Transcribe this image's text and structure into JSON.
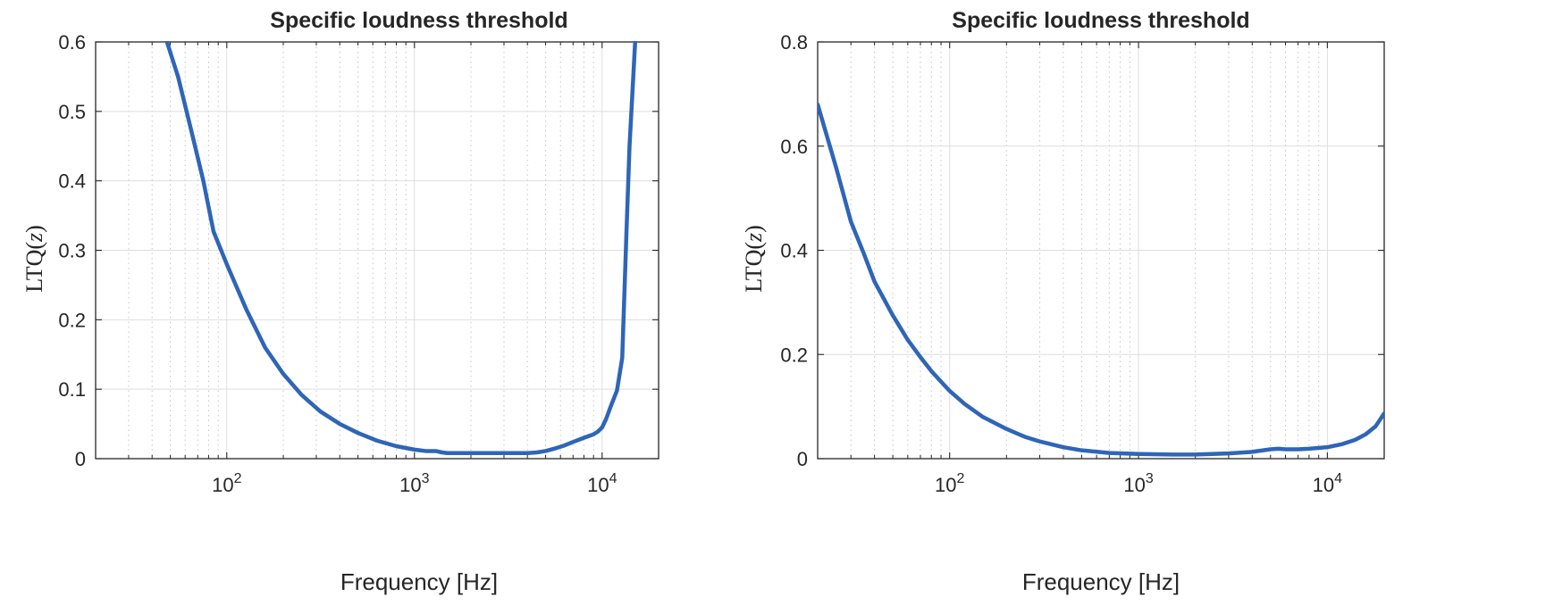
{
  "chart_data": [
    {
      "type": "line",
      "title": "Specific loudness threshold",
      "xlabel": "Frequency [Hz]",
      "ylabel": "LTQ(z)",
      "ylabel_parts": {
        "prefix": "LTQ(",
        "var": "z",
        "suffix": ")"
      },
      "xscale": "log",
      "xlim": [
        20,
        20000
      ],
      "ylim": [
        0,
        0.6
      ],
      "yticks": [
        0,
        0.1,
        0.2,
        0.3,
        0.4,
        0.5,
        0.6
      ],
      "ytick_labels": [
        "0",
        "0.1",
        "0.2",
        "0.3",
        "0.4",
        "0.5",
        "0.6"
      ],
      "xticks": [
        100,
        1000,
        10000
      ],
      "xtick_labels": [
        {
          "base": "10",
          "exp": "2"
        },
        {
          "base": "10",
          "exp": "3"
        },
        {
          "base": "10",
          "exp": "4"
        }
      ],
      "grid": true,
      "minor_grid": true,
      "line_color": "#2e65b8",
      "series": [
        {
          "x": [
            48,
            55,
            65,
            75,
            85,
            100,
            127,
            160,
            200,
            250,
            315,
            400,
            500,
            630,
            800,
            1000,
            1150,
            1300,
            1400,
            1500,
            1600,
            2000,
            2500,
            3000,
            3500,
            4000,
            4500,
            5000,
            5500,
            6300,
            7000,
            8000,
            9000,
            9500,
            10000,
            10500,
            11000,
            12000,
            12800,
            13500,
            14000,
            15000
          ],
          "y": [
            0.6,
            0.55,
            0.47,
            0.4,
            0.327,
            0.28,
            0.215,
            0.16,
            0.122,
            0.092,
            0.068,
            0.05,
            0.037,
            0.026,
            0.018,
            0.013,
            0.011,
            0.011,
            0.009,
            0.008,
            0.008,
            0.008,
            0.008,
            0.008,
            0.008,
            0.008,
            0.009,
            0.011,
            0.014,
            0.019,
            0.024,
            0.03,
            0.035,
            0.039,
            0.045,
            0.057,
            0.072,
            0.098,
            0.145,
            0.33,
            0.45,
            0.6
          ]
        }
      ]
    },
    {
      "type": "line",
      "title": "Specific loudness threshold",
      "xlabel": "Frequency [Hz]",
      "ylabel": "LTQ(z)",
      "ylabel_parts": {
        "prefix": "LTQ(",
        "var": "z",
        "suffix": ")"
      },
      "xscale": "log",
      "xlim": [
        20,
        20000
      ],
      "ylim": [
        0,
        0.8
      ],
      "yticks": [
        0,
        0.2,
        0.4,
        0.6,
        0.8
      ],
      "ytick_labels": [
        "0",
        "0.2",
        "0.4",
        "0.6",
        "0.8"
      ],
      "xticks": [
        100,
        1000,
        10000
      ],
      "xtick_labels": [
        {
          "base": "10",
          "exp": "2"
        },
        {
          "base": "10",
          "exp": "3"
        },
        {
          "base": "10",
          "exp": "4"
        }
      ],
      "grid": true,
      "minor_grid": true,
      "line_color": "#2e65b8",
      "series": [
        {
          "x": [
            20,
            25,
            30,
            35,
            40,
            50,
            60,
            70,
            80,
            100,
            120,
            150,
            200,
            250,
            300,
            400,
            500,
            700,
            1000,
            1500,
            2000,
            3000,
            4000,
            5000,
            5500,
            6000,
            7000,
            8000,
            10000,
            12000,
            14000,
            16000,
            18000,
            20000
          ],
          "y": [
            0.68,
            0.56,
            0.455,
            0.395,
            0.34,
            0.275,
            0.228,
            0.195,
            0.168,
            0.13,
            0.105,
            0.08,
            0.057,
            0.042,
            0.033,
            0.022,
            0.016,
            0.011,
            0.009,
            0.008,
            0.008,
            0.01,
            0.013,
            0.018,
            0.019,
            0.018,
            0.018,
            0.019,
            0.022,
            0.028,
            0.036,
            0.047,
            0.062,
            0.087
          ]
        }
      ]
    }
  ]
}
